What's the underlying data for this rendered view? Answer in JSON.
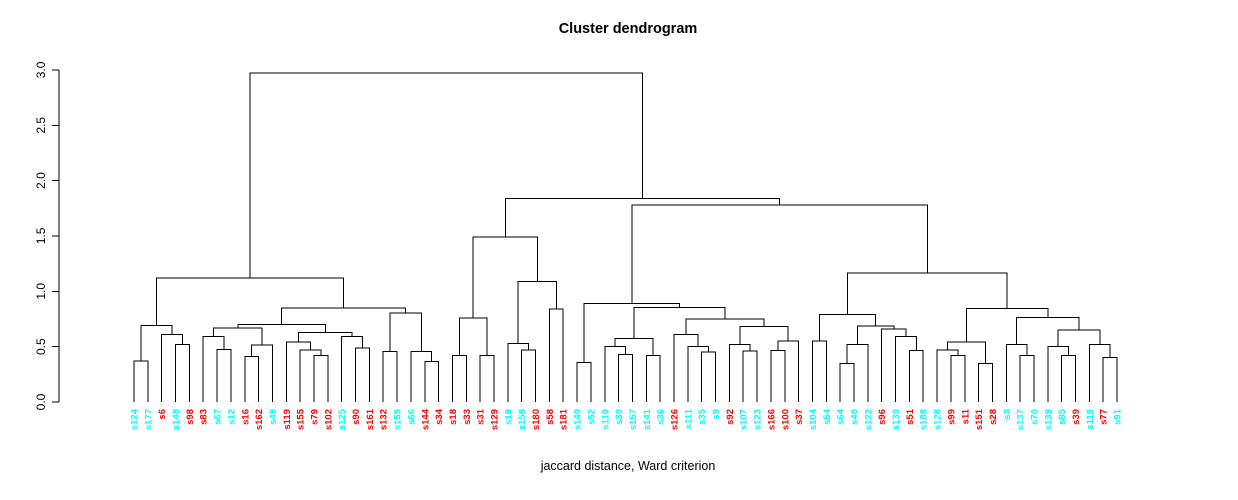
{
  "chart_data": {
    "type": "dendrogram",
    "title": "Cluster dendrogram",
    "xlabel": "jaccard distance, Ward criterion",
    "ylabel": "",
    "ylim": [
      0,
      3.0
    ],
    "yticks": [
      "0.0",
      "0.5",
      "1.0",
      "1.5",
      "2.0",
      "2.5",
      "3.0"
    ],
    "grid": false,
    "line_color": "#000000",
    "leaf_colors": {
      "cyan": "#00FFFF",
      "red": "#FF0000"
    },
    "leaves": [
      {
        "label": "s124",
        "color": "cyan"
      },
      {
        "label": "s177",
        "color": "cyan"
      },
      {
        "label": "s6",
        "color": "red"
      },
      {
        "label": "s148",
        "color": "cyan"
      },
      {
        "label": "s98",
        "color": "red"
      },
      {
        "label": "s83",
        "color": "red"
      },
      {
        "label": "s67",
        "color": "cyan"
      },
      {
        "label": "s12",
        "color": "cyan"
      },
      {
        "label": "s16",
        "color": "red"
      },
      {
        "label": "s162",
        "color": "red"
      },
      {
        "label": "s49",
        "color": "cyan"
      },
      {
        "label": "s119",
        "color": "red"
      },
      {
        "label": "s155",
        "color": "red"
      },
      {
        "label": "s79",
        "color": "red"
      },
      {
        "label": "s102",
        "color": "red"
      },
      {
        "label": "s125",
        "color": "cyan"
      },
      {
        "label": "s90",
        "color": "red"
      },
      {
        "label": "s161",
        "color": "red"
      },
      {
        "label": "s132",
        "color": "red"
      },
      {
        "label": "s159",
        "color": "cyan"
      },
      {
        "label": "s66",
        "color": "cyan"
      },
      {
        "label": "s144",
        "color": "red"
      },
      {
        "label": "s34",
        "color": "red"
      },
      {
        "label": "s18",
        "color": "red"
      },
      {
        "label": "s33",
        "color": "red"
      },
      {
        "label": "s31",
        "color": "red"
      },
      {
        "label": "s129",
        "color": "red"
      },
      {
        "label": "s19",
        "color": "cyan"
      },
      {
        "label": "s158",
        "color": "cyan"
      },
      {
        "label": "s180",
        "color": "red"
      },
      {
        "label": "s58",
        "color": "red"
      },
      {
        "label": "s181",
        "color": "red"
      },
      {
        "label": "s140",
        "color": "cyan"
      },
      {
        "label": "s52",
        "color": "cyan"
      },
      {
        "label": "s110",
        "color": "cyan"
      },
      {
        "label": "s30",
        "color": "cyan"
      },
      {
        "label": "s157",
        "color": "cyan"
      },
      {
        "label": "s141",
        "color": "cyan"
      },
      {
        "label": "s36",
        "color": "cyan"
      },
      {
        "label": "s126",
        "color": "red"
      },
      {
        "label": "s111",
        "color": "cyan"
      },
      {
        "label": "s35",
        "color": "cyan"
      },
      {
        "label": "s9",
        "color": "cyan"
      },
      {
        "label": "s92",
        "color": "red"
      },
      {
        "label": "s107",
        "color": "cyan"
      },
      {
        "label": "s123",
        "color": "cyan"
      },
      {
        "label": "s166",
        "color": "red"
      },
      {
        "label": "s100",
        "color": "red"
      },
      {
        "label": "s37",
        "color": "red"
      },
      {
        "label": "s104",
        "color": "cyan"
      },
      {
        "label": "s54",
        "color": "cyan"
      },
      {
        "label": "s64",
        "color": "cyan"
      },
      {
        "label": "s40",
        "color": "cyan"
      },
      {
        "label": "s122",
        "color": "cyan"
      },
      {
        "label": "s96",
        "color": "red"
      },
      {
        "label": "s130",
        "color": "cyan"
      },
      {
        "label": "s51",
        "color": "red"
      },
      {
        "label": "s188",
        "color": "cyan"
      },
      {
        "label": "s128",
        "color": "cyan"
      },
      {
        "label": "s99",
        "color": "red"
      },
      {
        "label": "s11",
        "color": "red"
      },
      {
        "label": "s151",
        "color": "red"
      },
      {
        "label": "s28",
        "color": "red"
      },
      {
        "label": "s3",
        "color": "cyan"
      },
      {
        "label": "s137",
        "color": "cyan"
      },
      {
        "label": "s70",
        "color": "cyan"
      },
      {
        "label": "s139",
        "color": "cyan"
      },
      {
        "label": "s85",
        "color": "cyan"
      },
      {
        "label": "s39",
        "color": "red"
      },
      {
        "label": "s118",
        "color": "cyan"
      },
      {
        "label": "s77",
        "color": "red"
      },
      {
        "label": "s91",
        "color": "cyan"
      }
    ],
    "tree": {
      "h": 2.97,
      "c": [
        {
          "h": 1.12,
          "c": [
            {
              "h": 0.69,
              "c": [
                {
                  "h": 0.37,
                  "c": [
                    "s124",
                    "s177"
                  ]
                },
                {
                  "h": 0.61,
                  "c": [
                    "s6",
                    {
                      "h": 0.52,
                      "c": [
                        "s148",
                        "s98"
                      ]
                    }
                  ]
                }
              ]
            },
            {
              "h": 0.85,
              "c": [
                {
                  "h": 0.7,
                  "c": [
                    {
                      "h": 0.67,
                      "c": [
                        {
                          "h": 0.59,
                          "c": [
                            "s83",
                            {
                              "h": 0.476,
                              "c": [
                                "s67",
                                "s12"
                              ]
                            }
                          ]
                        },
                        {
                          "h": 0.515,
                          "c": [
                            {
                              "h": 0.41,
                              "c": [
                                "s16",
                                "s162"
                              ]
                            },
                            "s49"
                          ]
                        }
                      ]
                    },
                    {
                      "h": 0.626,
                      "c": [
                        {
                          "h": 0.54,
                          "c": [
                            "s119",
                            {
                              "h": 0.47,
                              "c": [
                                "s155",
                                {
                                  "h": 0.42,
                                  "c": [
                                    "s79",
                                    "s102"
                                  ]
                                }
                              ]
                            }
                          ]
                        },
                        {
                          "h": 0.59,
                          "c": [
                            "s125",
                            {
                              "h": 0.49,
                              "c": [
                                "s90",
                                "s161"
                              ]
                            }
                          ]
                        }
                      ]
                    }
                  ]
                },
                {
                  "h": 0.805,
                  "c": [
                    {
                      "h": 0.455,
                      "c": [
                        "s132",
                        "s159"
                      ]
                    },
                    {
                      "h": 0.455,
                      "c": [
                        "s66",
                        {
                          "h": 0.364,
                          "c": [
                            "s144",
                            "s34"
                          ]
                        }
                      ]
                    }
                  ]
                }
              ]
            }
          ]
        },
        {
          "h": 1.84,
          "c": [
            {
              "h": 1.49,
              "c": [
                {
                  "h": 0.76,
                  "c": [
                    {
                      "h": 0.42,
                      "c": [
                        "s18",
                        "s33"
                      ]
                    },
                    {
                      "h": 0.42,
                      "c": [
                        "s31",
                        "s129"
                      ]
                    }
                  ]
                },
                {
                  "h": 1.09,
                  "c": [
                    {
                      "h": 0.53,
                      "c": [
                        "s19",
                        {
                          "h": 0.47,
                          "c": [
                            "s158",
                            "s180"
                          ]
                        }
                      ]
                    },
                    {
                      "h": 0.84,
                      "c": [
                        "s58",
                        "s181"
                      ]
                    }
                  ]
                }
              ]
            },
            {
              "h": 1.78,
              "c": [
                {
                  "h": 0.89,
                  "c": [
                    {
                      "h": 0.355,
                      "c": [
                        "s140",
                        "s52"
                      ]
                    },
                    {
                      "h": 0.855,
                      "c": [
                        {
                          "h": 0.575,
                          "c": [
                            {
                              "h": 0.5,
                              "c": [
                                "s110",
                                {
                                  "h": 0.43,
                                  "c": [
                                    "s30",
                                    "s157"
                                  ]
                                }
                              ]
                            },
                            {
                              "h": 0.42,
                              "c": [
                                "s141",
                                "s36"
                              ]
                            }
                          ]
                        },
                        {
                          "h": 0.75,
                          "c": [
                            {
                              "h": 0.61,
                              "c": [
                                "s126",
                                {
                                  "h": 0.5,
                                  "c": [
                                    "s111",
                                    {
                                      "h": 0.45,
                                      "c": [
                                        "s35",
                                        "s9"
                                      ]
                                    }
                                  ]
                                }
                              ]
                            },
                            {
                              "h": 0.68,
                              "c": [
                                {
                                  "h": 0.52,
                                  "c": [
                                    "s92",
                                    {
                                      "h": 0.46,
                                      "c": [
                                        "s107",
                                        "s123"
                                      ]
                                    }
                                  ]
                                },
                                {
                                  "h": 0.55,
                                  "c": [
                                    {
                                      "h": 0.465,
                                      "c": [
                                        "s166",
                                        "s100"
                                      ]
                                    },
                                    "s37"
                                  ]
                                }
                              ]
                            }
                          ]
                        }
                      ]
                    }
                  ]
                },
                {
                  "h": 1.165,
                  "c": [
                    {
                      "h": 0.79,
                      "c": [
                        {
                          "h": 0.55,
                          "c": [
                            "s104",
                            "s54"
                          ]
                        },
                        {
                          "h": 0.687,
                          "c": [
                            {
                              "h": 0.52,
                              "c": [
                                {
                                  "h": 0.35,
                                  "c": [
                                    "s64",
                                    "s40"
                                  ]
                                },
                                "s122"
                              ]
                            },
                            {
                              "h": 0.66,
                              "c": [
                                "s96",
                                {
                                  "h": 0.59,
                                  "c": [
                                    "s130",
                                    {
                                      "h": 0.465,
                                      "c": [
                                        "s51",
                                        "s188"
                                      ]
                                    }
                                  ]
                                }
                              ]
                            }
                          ]
                        }
                      ]
                    },
                    {
                      "h": 0.846,
                      "c": [
                        {
                          "h": 0.54,
                          "c": [
                            {
                              "h": 0.47,
                              "c": [
                                "s128",
                                {
                                  "h": 0.42,
                                  "c": [
                                    "s99",
                                    "s11"
                                  ]
                                }
                              ]
                            },
                            {
                              "h": 0.35,
                              "c": [
                                "s151",
                                "s28"
                              ]
                            }
                          ]
                        },
                        {
                          "h": 0.762,
                          "c": [
                            {
                              "h": 0.52,
                              "c": [
                                "s3",
                                {
                                  "h": 0.42,
                                  "c": [
                                    "s137",
                                    "s70"
                                  ]
                                }
                              ]
                            },
                            {
                              "h": 0.65,
                              "c": [
                                {
                                  "h": 0.5,
                                  "c": [
                                    "s139",
                                    {
                                      "h": 0.42,
                                      "c": [
                                        "s85",
                                        "s39"
                                      ]
                                    }
                                  ]
                                },
                                {
                                  "h": 0.52,
                                  "c": [
                                    "s118",
                                    {
                                      "h": 0.4,
                                      "c": [
                                        "s77",
                                        "s91"
                                      ]
                                    }
                                  ]
                                }
                              ]
                            }
                          ]
                        }
                      ]
                    }
                  ]
                }
              ]
            }
          ]
        }
      ]
    }
  }
}
